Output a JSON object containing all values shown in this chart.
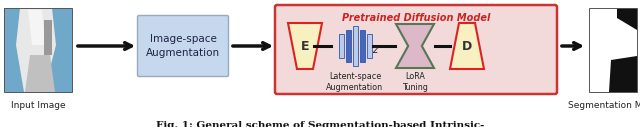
{
  "fig_width": 6.4,
  "fig_height": 1.27,
  "dpi": 100,
  "bg_color": "#ffffff",
  "caption": "Fig. 1: General scheme of Segmentation-based Intrinsic-",
  "input_label": "Input Image",
  "output_label": "Segmentation Mask",
  "augbox_label": "Image-space\nAugmentation",
  "augbox_color": "#c5d8ee",
  "augbox_edge": "#99aabb",
  "diffusion_box_color": "#f2dada",
  "diffusion_box_edge": "#cc3333",
  "diffusion_title": "Pretrained Diffusion Model",
  "diffusion_title_color": "#cc2222",
  "encoder_label": "E",
  "decoder_label": "D",
  "latent_label": "Latent-space\nAugmentation",
  "lora_label": "LoRA\nTuning",
  "trapezoid_fill": "#f8f0c0",
  "trapezoid_edge": "#dd2222",
  "hourglass_fill": "#ddb8c8",
  "hourglass_edge": "#557755",
  "latent_bar_colors_light": "#b8ccee",
  "latent_bar_colors_dark": "#4466bb",
  "arrow_color": "#111111",
  "caption_fontsize": 7.5
}
